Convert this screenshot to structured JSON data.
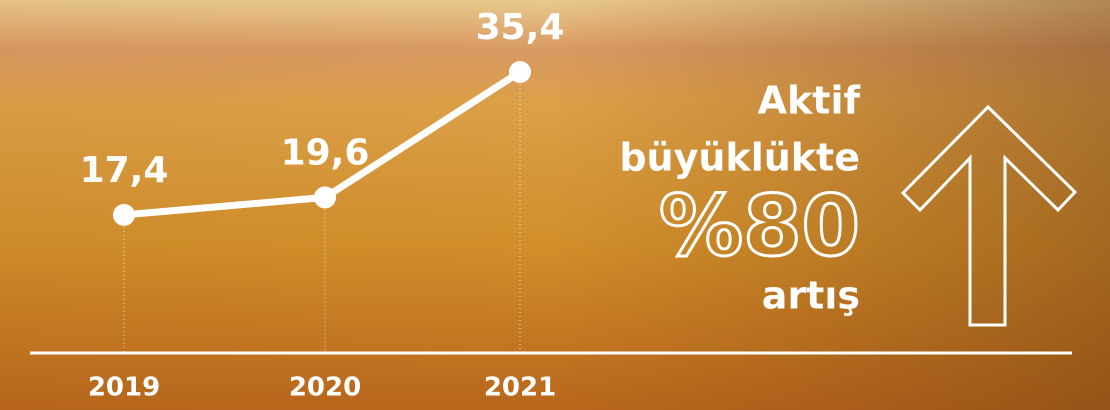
{
  "chart_data": {
    "type": "line",
    "categories": [
      "2019",
      "2020",
      "2021"
    ],
    "values": [
      17.4,
      19.6,
      35.4
    ],
    "value_labels": [
      "17,4",
      "19,6",
      "35,4"
    ],
    "color": "#ffffff"
  },
  "callout": {
    "lines": [
      "Aktif",
      "büyüklükte",
      "%80",
      "artış"
    ]
  }
}
